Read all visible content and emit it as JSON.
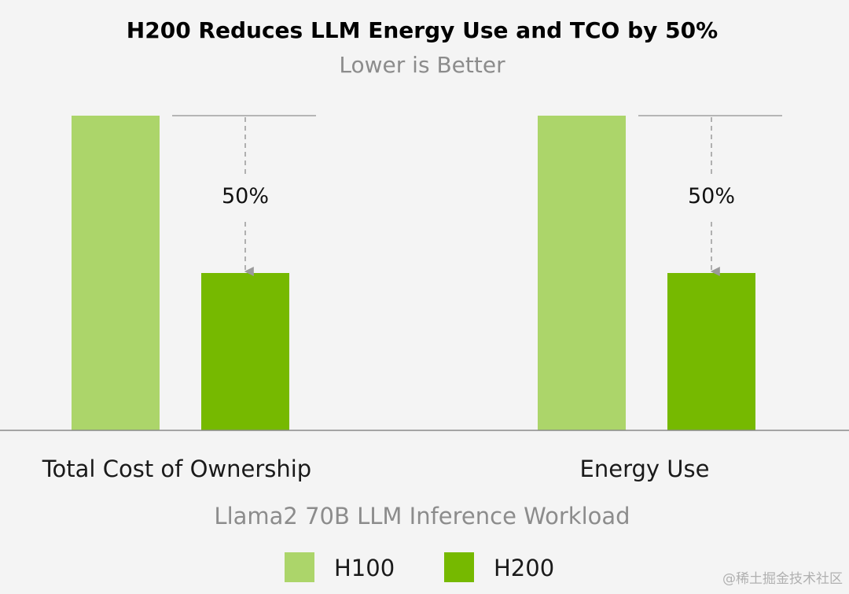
{
  "chart_data": {
    "type": "bar",
    "title": "H200 Reduces LLM Energy Use and TCO by 50%",
    "subtitle": "Lower is Better",
    "xlabel": "Llama2 70B LLM Inference Workload",
    "ylabel": "",
    "categories": [
      "Total Cost of Ownership",
      "Energy Use"
    ],
    "series": [
      {
        "name": "H100",
        "values": [
          1.0,
          1.0
        ],
        "color": "#acd56a"
      },
      {
        "name": "H200",
        "values": [
          0.5,
          0.5
        ],
        "color": "#76b900"
      }
    ],
    "ylim": [
      0,
      1
    ],
    "grid": false,
    "legend": "bottom",
    "annotations": [
      {
        "category": "Total Cost of Ownership",
        "text": "50%"
      },
      {
        "category": "Energy Use",
        "text": "50%"
      }
    ]
  },
  "watermark": "@稀土掘金技术社区"
}
